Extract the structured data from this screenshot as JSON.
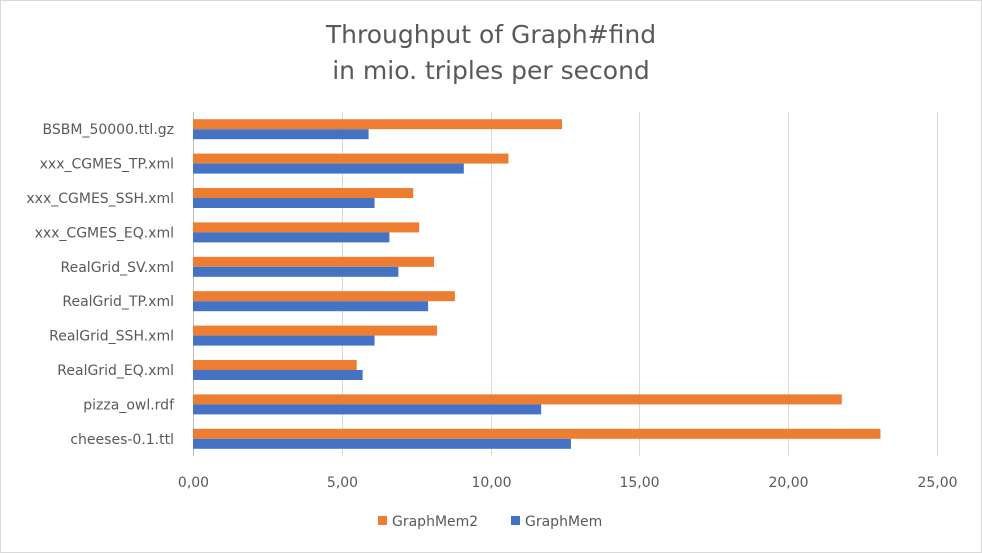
{
  "chart_data": {
    "type": "bar",
    "orientation": "horizontal",
    "title": "Throughput of Graph#find",
    "subtitle": "in mio. triples per second",
    "categories": [
      "BSBM_50000.ttl.gz",
      "xxx_CGMES_TP.xml",
      "xxx_CGMES_SSH.xml",
      "xxx_CGMES_EQ.xml",
      "RealGrid_SV.xml",
      "RealGrid_TP.xml",
      "RealGrid_SSH.xml",
      "RealGrid_EQ.xml",
      "pizza_owl.rdf",
      "cheeses-0.1.ttl"
    ],
    "series": [
      {
        "name": "GraphMem2",
        "color": "#ed7d31",
        "values": [
          12.4,
          10.6,
          7.4,
          7.6,
          8.1,
          8.8,
          8.2,
          5.5,
          21.8,
          23.1
        ]
      },
      {
        "name": "GraphMem",
        "color": "#4472c4",
        "values": [
          5.9,
          9.1,
          6.1,
          6.6,
          6.9,
          7.9,
          6.1,
          5.7,
          11.7,
          12.7
        ]
      }
    ],
    "x_ticks": [
      "0,00",
      "5,00",
      "10,00",
      "15,00",
      "20,00",
      "25,00"
    ],
    "xlim": [
      0,
      25
    ],
    "gridlines": true,
    "legend": "bottom"
  }
}
